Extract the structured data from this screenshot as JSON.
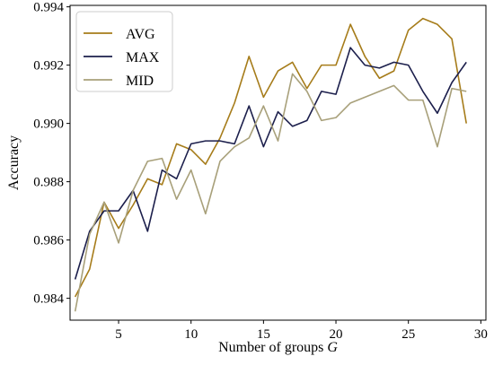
{
  "chart_data": {
    "type": "line",
    "xlabel": "Number of groups",
    "xlabel_var": "G",
    "ylabel": "Accuracy",
    "xlim": [
      1.65,
      30.35
    ],
    "ylim": [
      0.98325,
      0.99405
    ],
    "xticks": [
      5,
      10,
      15,
      20,
      25,
      30
    ],
    "xtick_labels": [
      "5",
      "10",
      "15",
      "20",
      "25",
      "30"
    ],
    "yticks": [
      0.984,
      0.986,
      0.988,
      0.99,
      0.992,
      0.994
    ],
    "ytick_labels": [
      "0.984",
      "0.986",
      "0.988",
      "0.990",
      "0.992",
      "0.994"
    ],
    "grid": false,
    "legend_position": "top-left",
    "x": [
      2,
      3,
      4,
      5,
      6,
      7,
      8,
      9,
      10,
      11,
      12,
      13,
      14,
      15,
      16,
      17,
      18,
      19,
      20,
      21,
      22,
      23,
      24,
      25,
      26,
      27,
      28,
      29
    ],
    "series": [
      {
        "name": "AVG",
        "color": "#a67c1a",
        "values": [
          0.98405,
          0.985,
          0.9873,
          0.9864,
          0.9872,
          0.9881,
          0.9879,
          0.9893,
          0.9891,
          0.9886,
          0.9895,
          0.9907,
          0.9923,
          0.9909,
          0.9918,
          0.9921,
          0.9912,
          0.992,
          0.992,
          0.9934,
          0.9923,
          0.99155,
          0.9918,
          0.9932,
          0.9936,
          0.9934,
          0.9929,
          0.99
        ]
      },
      {
        "name": "MAX",
        "color": "#1c1f4c",
        "values": [
          0.98465,
          0.9863,
          0.987,
          0.987,
          0.9877,
          0.9863,
          0.9884,
          0.9881,
          0.9893,
          0.9894,
          0.9894,
          0.9893,
          0.9906,
          0.9892,
          0.9904,
          0.9899,
          0.9901,
          0.9911,
          0.991,
          0.9926,
          0.992,
          0.9919,
          0.9921,
          0.992,
          0.9911,
          0.99035,
          0.9914,
          0.9921
        ]
      },
      {
        "name": "MID",
        "color": "#a8a07a",
        "values": [
          0.98355,
          0.9862,
          0.9873,
          0.9859,
          0.9877,
          0.9887,
          0.9888,
          0.9874,
          0.9884,
          0.9869,
          0.9887,
          0.9892,
          0.9895,
          0.9906,
          0.9894,
          0.9917,
          0.9911,
          0.9901,
          0.9902,
          0.9907,
          0.9909,
          0.9911,
          0.9913,
          0.9908,
          0.9908,
          0.9892,
          0.9912,
          0.9911
        ]
      }
    ]
  }
}
